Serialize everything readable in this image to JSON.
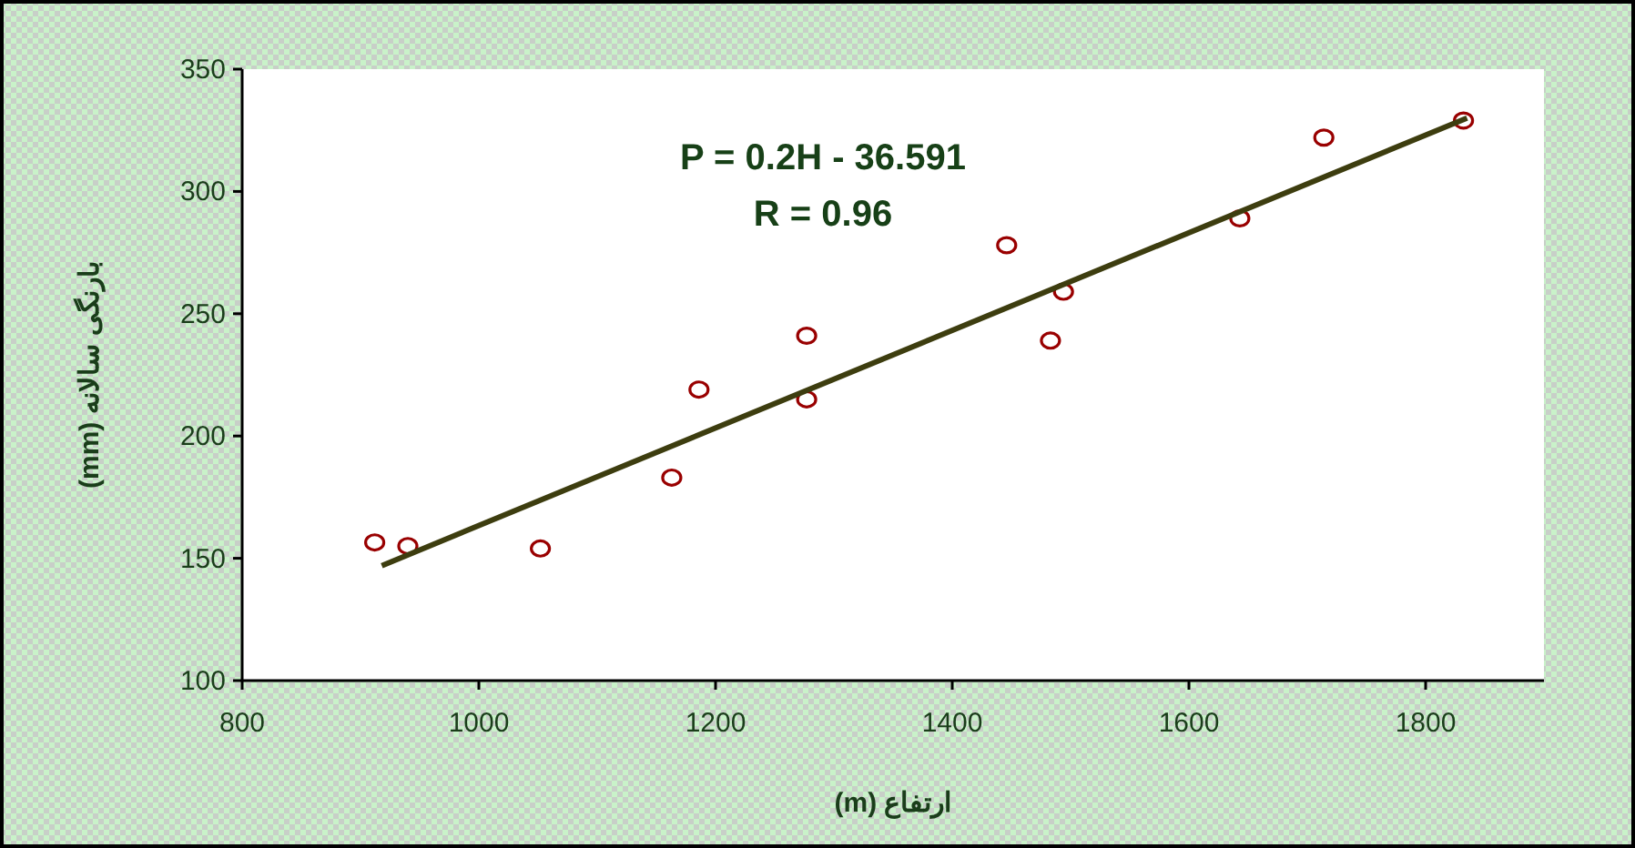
{
  "chart_data": {
    "type": "scatter",
    "xlabel": "ارتفاع (m)",
    "ylabel": "بارنگی سالانه (mm)",
    "xlim": [
      800,
      1900
    ],
    "xticks": [
      800,
      1000,
      1200,
      1400,
      1600,
      1800
    ],
    "ylim": [
      100,
      350
    ],
    "yticks": [
      100,
      150,
      200,
      250,
      300,
      350
    ],
    "grid": false,
    "annotations": [
      "P = 0.2H - 36.591",
      "R = 0.96"
    ],
    "series": [
      {
        "color": "#990000",
        "marker": "circle",
        "x": [
          912,
          940,
          1052,
          1163,
          1186,
          1277,
          1277,
          1446,
          1483,
          1494,
          1643,
          1714,
          1832
        ],
        "values": [
          156.5,
          155,
          154,
          183,
          219,
          241,
          215,
          278,
          239,
          259,
          289,
          322,
          329
        ]
      },
      {
        "type": "line",
        "color": "#3d3d0f",
        "line_style": "solid",
        "x": [
          918,
          1835
        ],
        "values": [
          147,
          330
        ]
      }
    ]
  }
}
